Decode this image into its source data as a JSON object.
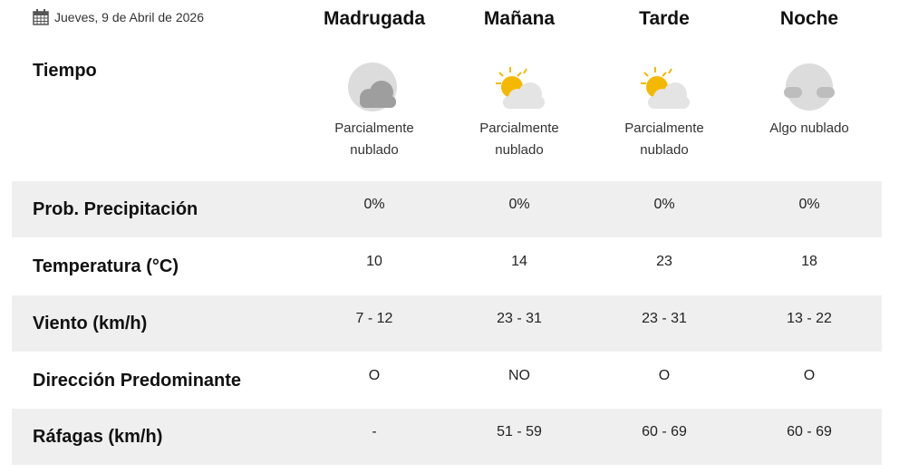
{
  "header": {
    "date": "Jueves, 9 de Abril de 2026",
    "tiempo_label": "Tiempo",
    "periods": [
      "Madrugada",
      "Mañana",
      "Tarde",
      "Noche"
    ]
  },
  "weather": [
    {
      "icon": "moon-cloud-icon",
      "desc1": "Parcialmente",
      "desc2": "nublado"
    },
    {
      "icon": "sun-cloud-icon",
      "desc1": "Parcialmente",
      "desc2": "nublado"
    },
    {
      "icon": "sun-cloud-icon",
      "desc1": "Parcialmente",
      "desc2": "nublado"
    },
    {
      "icon": "moon-clouds-icon",
      "desc1": "Algo nublado",
      "desc2": ""
    }
  ],
  "rows": [
    {
      "label": "Prob. Precipitación",
      "values": [
        "0%",
        "0%",
        "0%",
        "0%"
      ]
    },
    {
      "label": "Temperatura (°C)",
      "values": [
        "10",
        "14",
        "23",
        "18"
      ]
    },
    {
      "label": "Viento (km/h)",
      "values": [
        "7 - 12",
        "23 - 31",
        "23 - 31",
        "13 - 22"
      ]
    },
    {
      "label": "Dirección Predominante",
      "values": [
        "O",
        "NO",
        "O",
        "O"
      ]
    },
    {
      "label": "Ráfagas (km/h)",
      "values": [
        "-",
        "51 - 59",
        "60 - 69",
        "60 - 69"
      ]
    }
  ],
  "colors": {
    "band": "#efefef",
    "sun": "#f5b800",
    "cloud": "#e4e4e4",
    "moon": "#dcdcdc"
  }
}
